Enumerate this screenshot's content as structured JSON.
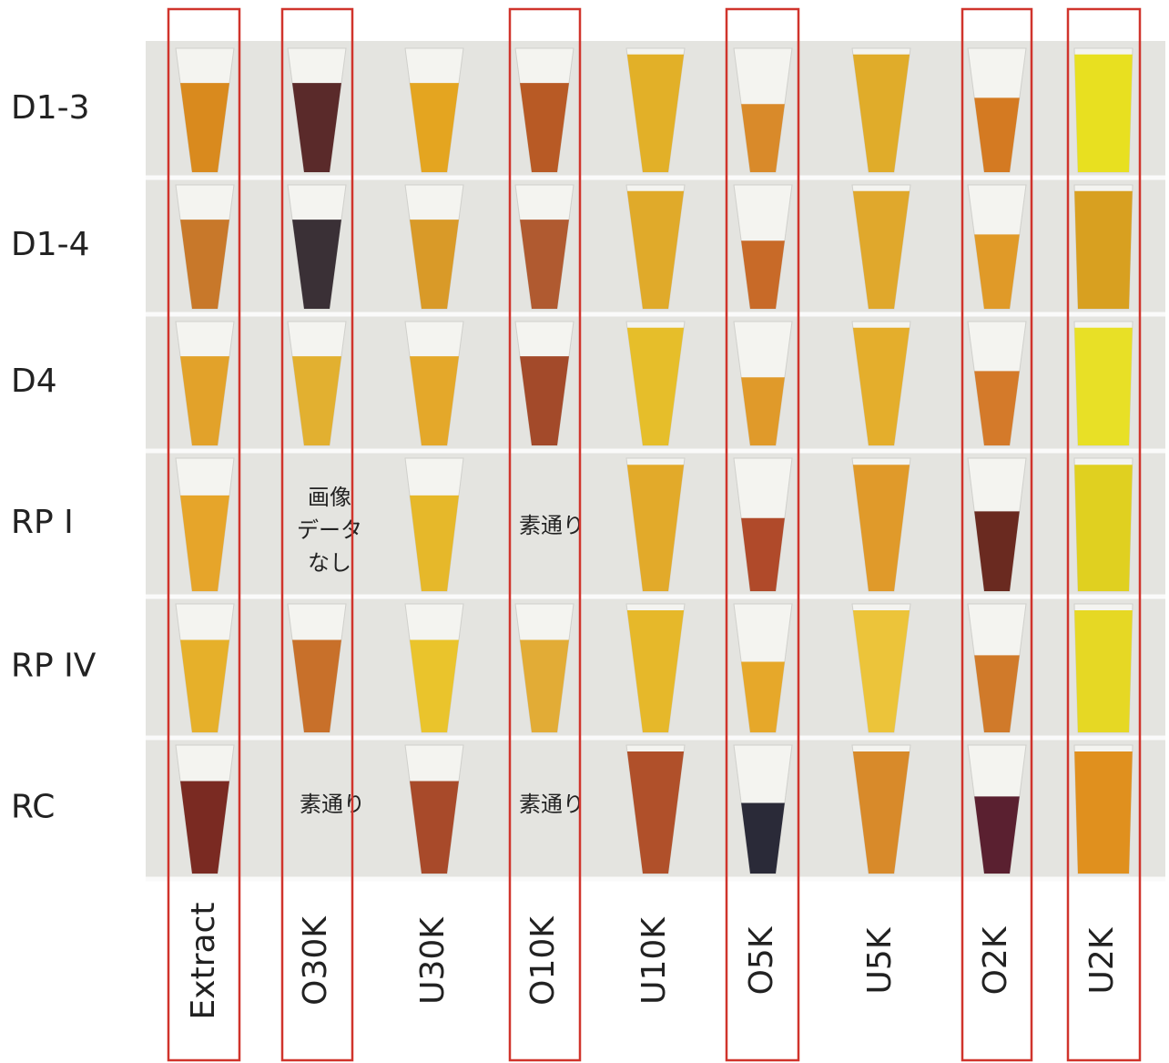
{
  "rows": [
    "D1-3",
    "D1-4",
    "D4",
    "RP I",
    "RP IV",
    "RC"
  ],
  "columns": [
    "Extract",
    "O30K",
    "U30K",
    "O10K",
    "U10K",
    "O5K",
    "U5K",
    "O2K",
    "U2K"
  ],
  "annotations": [
    [
      "画像",
      "データ",
      "なし"
    ],
    [
      "素通り"
    ],
    [
      "素通り"
    ],
    [
      "素通り"
    ]
  ]
}
